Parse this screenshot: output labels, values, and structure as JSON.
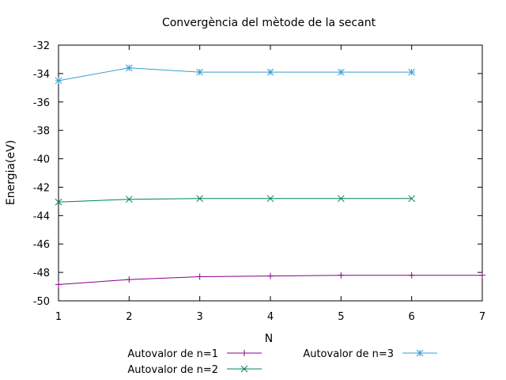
{
  "chart_data": {
    "type": "line",
    "title": "Convergència del mètode de la secant",
    "xlabel": "N",
    "ylabel": "Energia(eV)",
    "xlim": [
      1,
      7
    ],
    "ylim": [
      -50,
      -32
    ],
    "x_ticks": [
      1,
      2,
      3,
      4,
      5,
      6,
      7
    ],
    "y_ticks": [
      -50,
      -48,
      -46,
      -44,
      -42,
      -40,
      -38,
      -36,
      -34,
      -32
    ],
    "grid": false,
    "legend_position": "bottom",
    "series": [
      {
        "name": "Autovalor de n=1",
        "color": "#8b008b",
        "marker": "plus",
        "x": [
          1,
          2,
          3,
          4,
          5,
          6,
          7
        ],
        "values": [
          -48.85,
          -48.5,
          -48.3,
          -48.25,
          -48.2,
          -48.2,
          -48.2
        ]
      },
      {
        "name": "Autovalor de n=2",
        "color": "#008060",
        "marker": "cross",
        "x": [
          1,
          2,
          3,
          4,
          5,
          6
        ],
        "values": [
          -43.05,
          -42.85,
          -42.8,
          -42.8,
          -42.8,
          -42.8
        ]
      },
      {
        "name": "Autovalor de n=3",
        "color": "#3a9fd0",
        "marker": "star",
        "x": [
          1,
          2,
          3,
          4,
          5,
          6
        ],
        "values": [
          -34.5,
          -33.6,
          -33.9,
          -33.9,
          -33.9,
          -33.9
        ]
      }
    ]
  }
}
